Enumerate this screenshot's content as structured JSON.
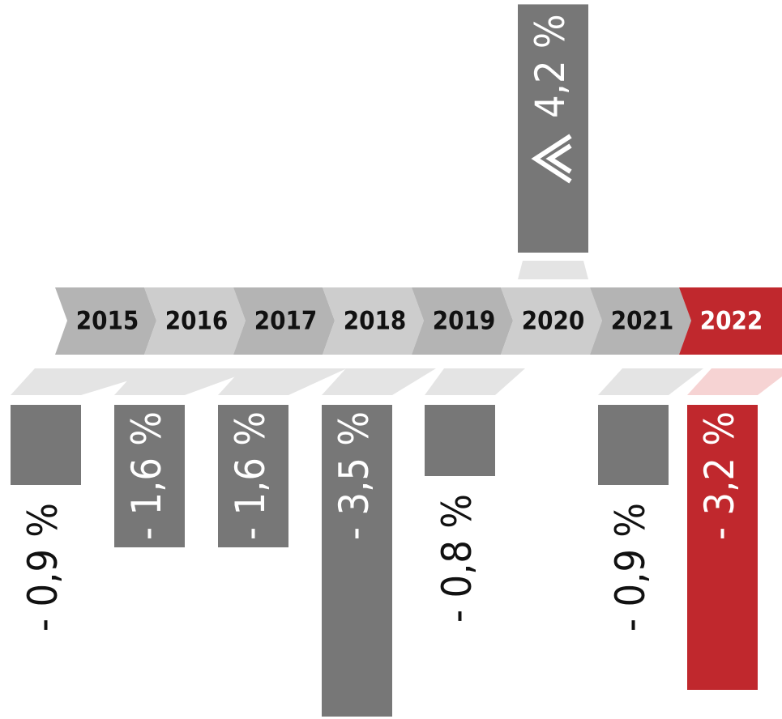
{
  "chart_data": {
    "type": "bar",
    "categories": [
      "2015",
      "2016",
      "2017",
      "2018",
      "2019",
      "2020",
      "2021",
      "2022"
    ],
    "values": [
      -0.9,
      -1.6,
      -1.6,
      -3.5,
      -0.8,
      4.2,
      -0.9,
      -3.2
    ],
    "value_labels": [
      "- 0,9 %",
      "- 1,6 %",
      "- 1,6 %",
      "- 3,5 %",
      "- 0,8 %",
      "4,2 %",
      "- 0,9 %",
      "- 3,2 %"
    ],
    "colors": [
      "#777777",
      "#777777",
      "#777777",
      "#777777",
      "#777777",
      "#777777",
      "#777777",
      "#c0282d"
    ]
  }
}
